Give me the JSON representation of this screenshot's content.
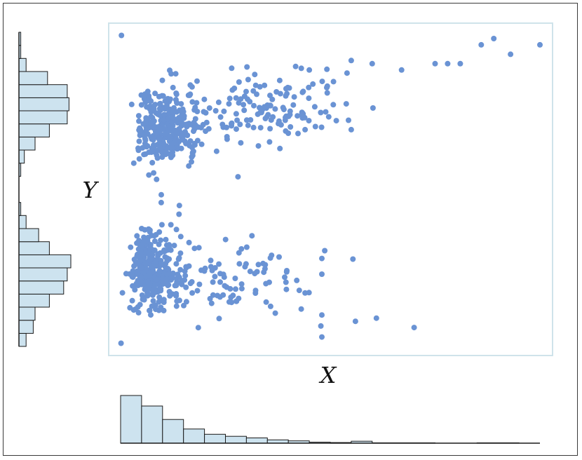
{
  "chart_data": {
    "type": "scatter",
    "title": "",
    "xlabel": "X",
    "ylabel": "Y",
    "xlim": [
      0,
      100
    ],
    "ylim": [
      0,
      100
    ],
    "grid": false,
    "legend": "none",
    "colors": {
      "point": "#6a93d4",
      "hist_fill": "#cde3ef",
      "hist_stroke": "#1a1a1a",
      "plot_border": "#cfe3ea"
    },
    "marginal_x_hist": {
      "bin_width": 5,
      "x_start": 0,
      "counts": [
        145,
        113,
        72,
        43,
        27,
        21,
        16,
        10,
        7,
        3,
        2,
        6,
        1,
        1,
        1,
        0,
        0,
        1,
        1,
        0
      ]
    },
    "marginal_y_hist": {
      "bin_width": 5,
      "y_start": 0,
      "counts": [
        4,
        8,
        9,
        17,
        25,
        27,
        29,
        17,
        11,
        4,
        1,
        0,
        0,
        1,
        3,
        9,
        17,
        27,
        28,
        27,
        16,
        4,
        1,
        1
      ]
    },
    "clusters": [
      {
        "n": 330,
        "cx": 8,
        "cy": 70,
        "sx": 6,
        "sy": 6,
        "skew": "right"
      },
      {
        "n": 120,
        "cx": 30,
        "cy": 76,
        "sx": 12,
        "sy": 6,
        "skew": "right"
      },
      {
        "n": 330,
        "cx": 6,
        "cy": 24,
        "sx": 5,
        "sy": 6,
        "skew": "right"
      },
      {
        "n": 70,
        "cx": 25,
        "cy": 22,
        "sx": 11,
        "sy": 7,
        "skew": "right"
      }
    ],
    "outliers": [
      {
        "x": 0.2,
        "y": 99
      },
      {
        "x": 86,
        "y": 96
      },
      {
        "x": 89,
        "y": 98
      },
      {
        "x": 93,
        "y": 93
      },
      {
        "x": 100,
        "y": 96
      },
      {
        "x": 75,
        "y": 90
      },
      {
        "x": 78,
        "y": 90
      },
      {
        "x": 81,
        "y": 90
      },
      {
        "x": 67,
        "y": 88
      },
      {
        "x": 60,
        "y": 90
      },
      {
        "x": 55,
        "y": 91
      },
      {
        "x": 54,
        "y": 87
      },
      {
        "x": 45,
        "y": 88
      },
      {
        "x": 44,
        "y": 69
      },
      {
        "x": 55,
        "y": 69
      },
      {
        "x": 38,
        "y": 63
      },
      {
        "x": 28,
        "y": 54
      },
      {
        "x": 48,
        "y": 28
      },
      {
        "x": 48,
        "y": 23
      },
      {
        "x": 48,
        "y": 3
      },
      {
        "x": 48,
        "y": 10
      },
      {
        "x": 56,
        "y": 8
      },
      {
        "x": 61,
        "y": 9
      },
      {
        "x": 70,
        "y": 6
      },
      {
        "x": 36,
        "y": 29
      },
      {
        "x": 42,
        "y": 21
      },
      {
        "x": 44,
        "y": 17
      },
      {
        "x": 0.1,
        "y": 1
      }
    ]
  }
}
